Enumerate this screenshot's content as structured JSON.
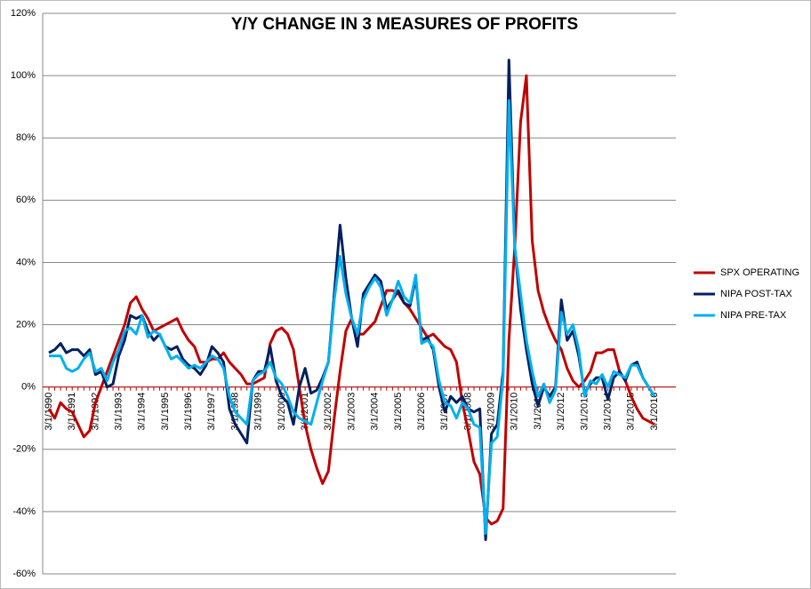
{
  "chart_data": {
    "type": "line",
    "title": "Y/Y CHANGE IN 3 MEASURES OF PROFITS",
    "categories": [
      "3/1/1990",
      null,
      null,
      null,
      "3/1/1991",
      null,
      null,
      null,
      "3/1/1992",
      null,
      null,
      null,
      "3/1/1993",
      null,
      null,
      null,
      "3/1/1994",
      null,
      null,
      null,
      "3/1/1995",
      null,
      null,
      null,
      "3/1/1996",
      null,
      null,
      null,
      "3/1/1997",
      null,
      null,
      null,
      "3/1/1998",
      null,
      null,
      null,
      "3/1/1999",
      null,
      null,
      null,
      "3/1/2000",
      null,
      null,
      null,
      "3/1/2001",
      null,
      null,
      null,
      "3/1/2002",
      null,
      null,
      null,
      "3/1/2003",
      null,
      null,
      null,
      "3/1/2004",
      null,
      null,
      null,
      "3/1/2005",
      null,
      null,
      null,
      "3/1/2006",
      null,
      null,
      null,
      "3/1/2007",
      null,
      null,
      null,
      "3/1/2008",
      null,
      null,
      null,
      "3/1/2009",
      null,
      null,
      null,
      "3/1/2010",
      null,
      null,
      null,
      "3/1/2011",
      null,
      null,
      null,
      "3/1/2012",
      null,
      null,
      null,
      "3/1/2013",
      null,
      null,
      null,
      "3/1/2014",
      null,
      null,
      null,
      "3/1/2015",
      null,
      null,
      null,
      "3/1/2016"
    ],
    "series": [
      {
        "name": "SPX OPERATING",
        "color": "#c00000",
        "values": [
          -7,
          -10,
          -5,
          -7,
          -8,
          -12,
          -16,
          -14,
          -5,
          0,
          5,
          10,
          15,
          20,
          27,
          29,
          25,
          22,
          18,
          19,
          20,
          21,
          22,
          18,
          15,
          13,
          8,
          8,
          9,
          9,
          11,
          8,
          6,
          4,
          1,
          1,
          2,
          3,
          14,
          18,
          19,
          17,
          12,
          0,
          -12,
          -20,
          -26,
          -31,
          -27,
          -10,
          5,
          18,
          22,
          17,
          17,
          19,
          21,
          26,
          31,
          31,
          30,
          27,
          25,
          22,
          19,
          16,
          17,
          15,
          13,
          12,
          8,
          -5,
          -14,
          -24,
          -28,
          -42,
          -44,
          -43,
          -39,
          15,
          45,
          85,
          100,
          47,
          31,
          24,
          19,
          15,
          12,
          6,
          2,
          0,
          2,
          5,
          11,
          11,
          12,
          12,
          5,
          2,
          -3,
          -7,
          -10,
          -11,
          -12
        ]
      },
      {
        "name": "NIPA POST-TAX",
        "color": "#002060",
        "values": [
          11,
          12,
          14,
          11,
          12,
          12,
          10,
          12,
          4,
          5,
          0,
          1,
          10,
          15,
          23,
          22,
          23,
          18,
          15,
          17,
          13,
          12,
          13,
          9,
          7,
          6,
          4,
          7,
          13,
          11,
          8,
          -7,
          -12,
          -15,
          -18,
          2,
          5,
          5,
          13,
          2,
          -3,
          -5,
          -12,
          0,
          6,
          -2,
          -1,
          3,
          8,
          30,
          52,
          35,
          22,
          13,
          30,
          33,
          36,
          34,
          25,
          28,
          31,
          27,
          26,
          35,
          15,
          16,
          12,
          0,
          -8,
          -3,
          -5,
          -3,
          -7,
          -8,
          -7,
          -49,
          -15,
          -12,
          5,
          105,
          45,
          25,
          12,
          1,
          -6,
          0,
          -3,
          0,
          28,
          15,
          18,
          10,
          -2,
          1,
          3,
          3,
          -4,
          3,
          5,
          2,
          7,
          8,
          3,
          0,
          -3
        ]
      },
      {
        "name": "NIPA PRE-TAX",
        "color": "#00b0f0",
        "values": [
          10,
          10,
          10,
          6,
          5,
          6,
          9,
          11,
          5,
          6,
          2,
          8,
          12,
          18,
          19,
          17,
          23,
          16,
          18,
          17,
          13,
          9,
          10,
          8,
          6,
          7,
          6,
          8,
          10,
          9,
          6,
          -3,
          -8,
          -10,
          -12,
          2,
          4,
          5,
          8,
          3,
          1,
          -3,
          -8,
          -10,
          -11,
          -12,
          -5,
          2,
          8,
          28,
          42,
          30,
          22,
          17,
          28,
          32,
          35,
          32,
          23,
          28,
          34,
          29,
          27,
          36,
          14,
          15,
          13,
          2,
          -5,
          -6,
          -10,
          -5,
          -7,
          -12,
          -13,
          -47,
          -18,
          -16,
          3,
          92,
          45,
          30,
          15,
          5,
          -3,
          1,
          -5,
          -1,
          24,
          17,
          20,
          12,
          -3,
          2,
          1,
          4,
          0,
          5,
          4,
          3,
          7,
          7,
          3,
          0,
          -3
        ]
      }
    ],
    "ylim": [
      -60,
      120
    ],
    "yticks": [
      {
        "value": -60,
        "label": "-60%"
      },
      {
        "value": -40,
        "label": "-40%"
      },
      {
        "value": -20,
        "label": "-20%"
      },
      {
        "value": 0,
        "label": "0%"
      },
      {
        "value": 20,
        "label": "20%"
      },
      {
        "value": 40,
        "label": "40%"
      },
      {
        "value": 60,
        "label": "60%"
      },
      {
        "value": 80,
        "label": "80%"
      },
      {
        "value": 100,
        "label": "100%"
      },
      {
        "value": 120,
        "label": "120%"
      }
    ],
    "grid": true,
    "legend": "right"
  }
}
